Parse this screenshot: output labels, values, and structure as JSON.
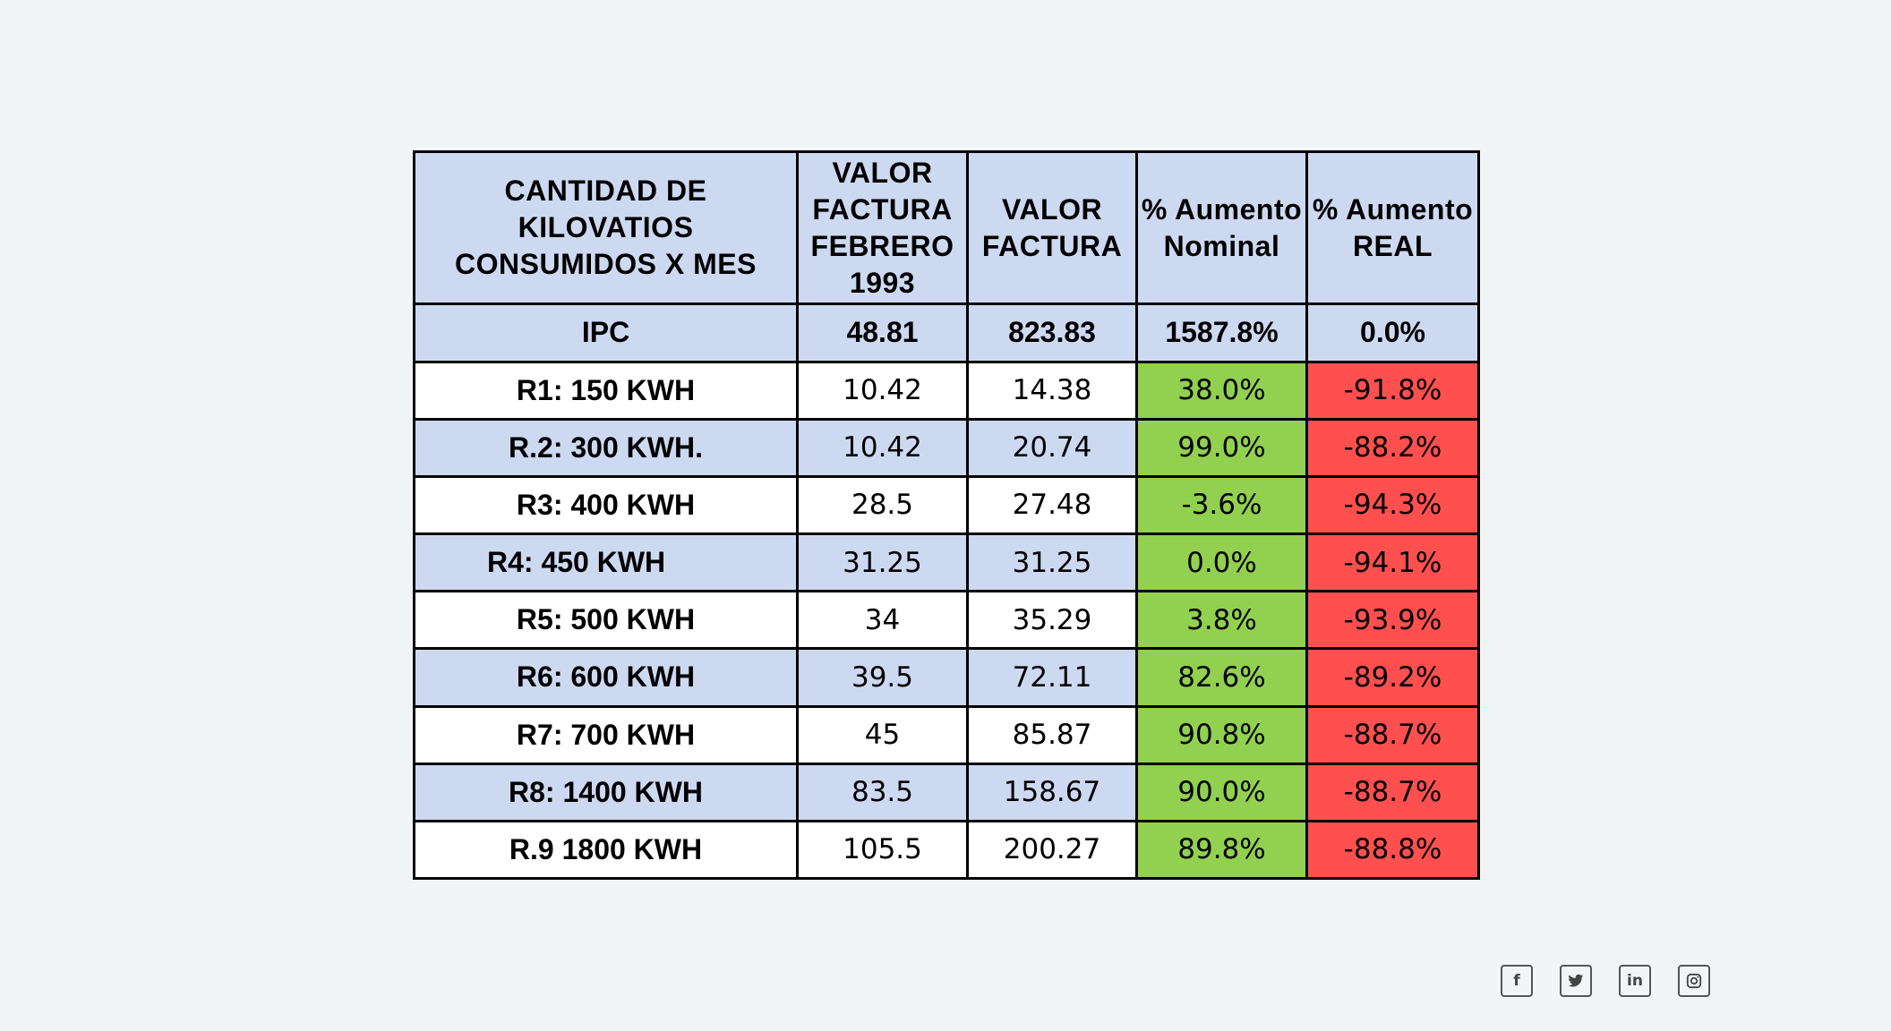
{
  "table": {
    "headers": [
      "CANTIDAD DE KILOVATIOS CONSUMIDOS X MES",
      "VALOR FACTURA FEBRERO 1993",
      "VALOR FACTURA",
      "% Aumento Nominal",
      "% Aumento REAL"
    ],
    "ipc": [
      "IPC",
      "48.81",
      "823.83",
      "1587.8%",
      "0.0%"
    ],
    "rows": [
      [
        "R1: 150  KWH",
        "10.42",
        "14.38",
        "38.0%",
        "-91.8%"
      ],
      [
        "R.2: 300 KWH.",
        "10.42",
        "20.74",
        "99.0%",
        "-88.2%"
      ],
      [
        "R3: 400 KWH",
        "28.5",
        "27.48",
        "-3.6%",
        "-94.3%"
      ],
      [
        "R4: 450 KWH",
        "31.25",
        "31.25",
        "0.0%",
        "-94.1%"
      ],
      [
        "R5: 500 KWH",
        "34",
        "35.29",
        "3.8%",
        "-93.9%"
      ],
      [
        "R6: 600 KWH",
        "39.5",
        "72.11",
        "82.6%",
        "-89.2%"
      ],
      [
        "R7: 700 KWH",
        "45",
        "85.87",
        "90.8%",
        "-88.7%"
      ],
      [
        "R8: 1400 KWH",
        "83.5",
        "158.67",
        "90.0%",
        "-88.7%"
      ],
      [
        "R.9 1800 KWH",
        "105.5",
        "200.27",
        "89.8%",
        "-88.8%"
      ]
    ]
  },
  "colors": {
    "header_fill": "#cdd9f1",
    "nominal_fill": "#92d050",
    "real_fill": "#ff4f4f",
    "page_bg": "#f1f5f6"
  },
  "social": [
    {
      "icon": "facebook-icon",
      "glyph": "f"
    },
    {
      "icon": "twitter-icon",
      "glyph": "🐦"
    },
    {
      "icon": "linkedin-icon",
      "glyph": "in"
    },
    {
      "icon": "instagram-icon",
      "glyph": "◎"
    }
  ]
}
